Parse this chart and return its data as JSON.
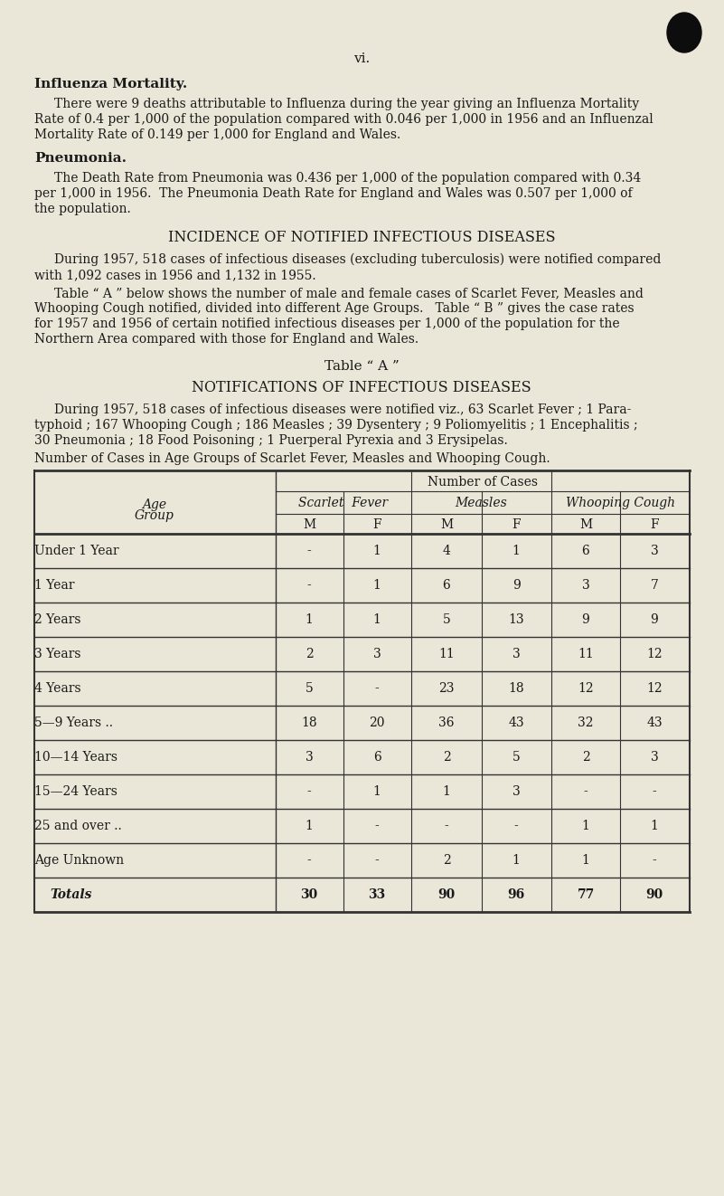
{
  "bg_color": "#eae6d8",
  "text_color": "#1a1a1a",
  "page_number": "vi.",
  "section1_title": "Influenza Mortality.",
  "section1_body1": "There were 9 deaths attributable to Influenza during the year giving an Influenza Mortality",
  "section1_body2": "Rate of 0.4 per 1,000 of the population compared with 0.046 per 1,000 in 1956 and an Influenzal",
  "section1_body3": "Mortality Rate of 0.149 per 1,000 for England and Wales.",
  "section2_title": "Pneumonia.",
  "section2_body1": "The Death Rate from Pneumonia was 0.436 per 1,000 of the population compared with 0.34",
  "section2_body2": "per 1,000 in 1956.  The Pneumonia Death Rate for England and Wales was 0.507 per 1,000 of",
  "section2_body3": "the population.",
  "section3_title": "INCIDENCE OF NOTIFIED INFECTIOUS DISEASES",
  "section3_p1a": "During 1957, 518 cases of infectious diseases (excluding tuberculosis) were notified compared",
  "section3_p1b": "with 1,092 cases in 1956 and 1,132 in 1955.",
  "section3_p2a": "Table “ A ” below shows the number of male and female cases of Scarlet Fever, Measles and",
  "section3_p2b": "Whooping Cough notified, divided into different Age Groups.   Table “ B ” gives the case rates",
  "section3_p2c": "for 1957 and 1956 of certain notified infectious diseases per 1,000 of the population for the",
  "section3_p2d": "Northern Area compared with those for England and Wales.",
  "table_a_title": "Table “ A ”",
  "table_a_subtitle": "NOTIFICATIONS OF INFECTIOUS DISEASES",
  "table_a_p1": "During 1957, 518 cases of infectious diseases were notified viz., 63 Scarlet Fever ; 1 Para-",
  "table_a_p2": "typhoid ; 167 Whooping Cough ; 186 Measles ; 39 Dysentery ; 9 Poliomyelitis ; 1 Encephalitis ;",
  "table_a_p3": "30 Pneumonia ; 18 Food Poisoning ; 1 Puerperal Pyrexia and 3 Erysipelas.",
  "table_caption": "Number of Cases in Age Groups of Scarlet Fever, Measles and Whooping Cough.",
  "col_header1": "Number of Cases",
  "col_header2a": "Scarlet  Fever",
  "col_header2b": "Measles",
  "col_header2c": "Whooping Cough",
  "age_groups": [
    "Under 1 Year",
    "1 Year",
    "2 Years",
    "3 Years",
    "4 Years",
    "5—9 Years ..",
    "10—14 Years",
    "15—24 Years",
    "25 and over ..",
    "Age Unknown",
    "Totals"
  ],
  "scarlet_M": [
    "-",
    "-",
    "1",
    "2",
    "5",
    "18",
    "3",
    "-",
    "1",
    "-",
    "30"
  ],
  "scarlet_F": [
    "1",
    "1",
    "1",
    "3",
    "-",
    "20",
    "6",
    "1",
    "-",
    "-",
    "33"
  ],
  "measles_M": [
    "4",
    "6",
    "5",
    "11",
    "23",
    "36",
    "2",
    "1",
    "-",
    "2",
    "90"
  ],
  "measles_F": [
    "1",
    "9",
    "13",
    "3",
    "18",
    "43",
    "5",
    "3",
    "-",
    "1",
    "96"
  ],
  "whooping_M": [
    "6",
    "3",
    "9",
    "11",
    "12",
    "32",
    "2",
    "-",
    "1",
    "1",
    "77"
  ],
  "whooping_F": [
    "3",
    "7",
    "9",
    "12",
    "12",
    "43",
    "3",
    "-",
    "1",
    "-",
    "90"
  ]
}
